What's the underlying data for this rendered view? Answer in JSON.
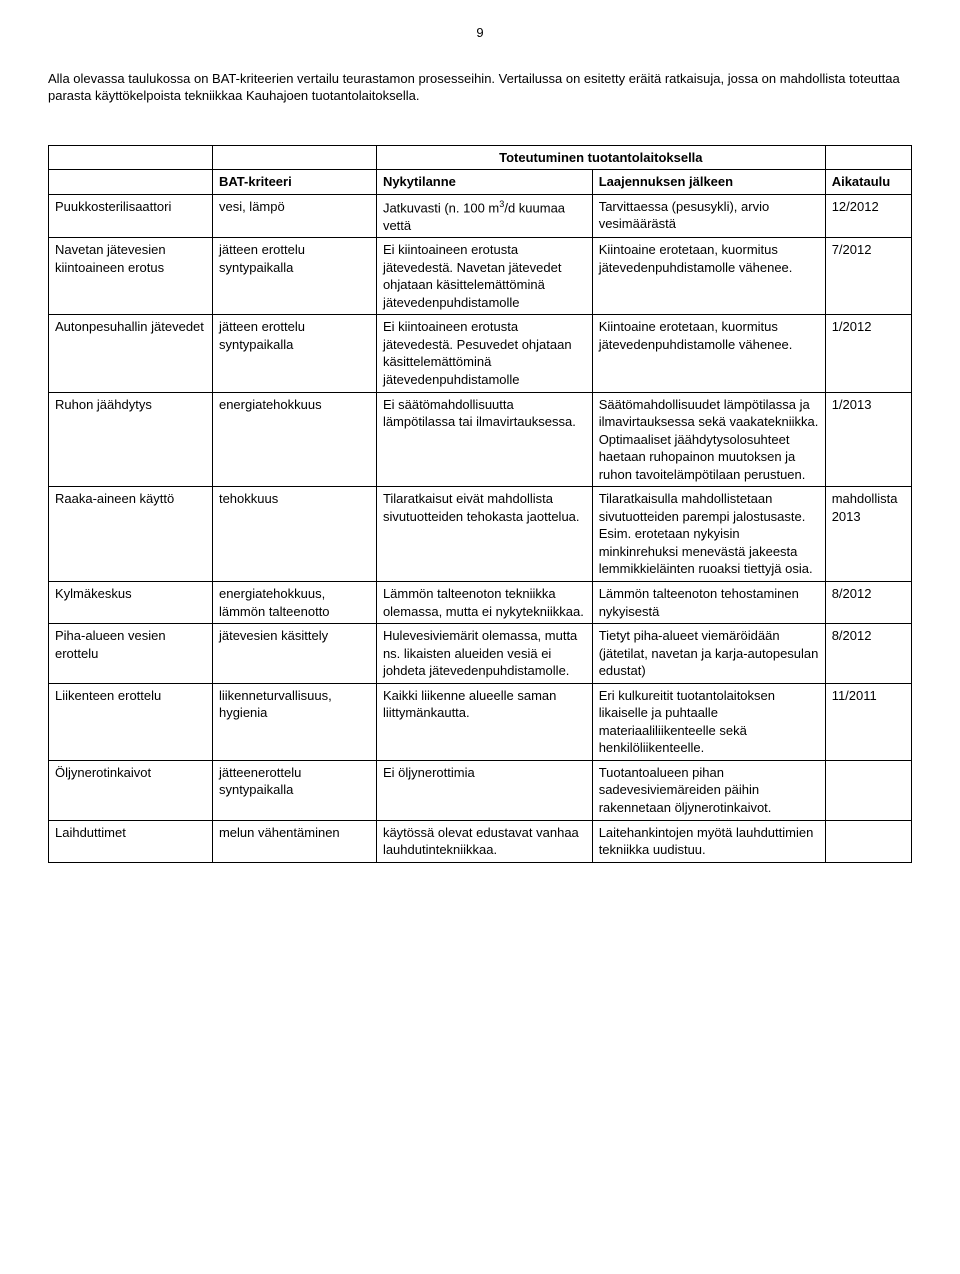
{
  "page_number": "9",
  "intro_text": "Alla olevassa taulukossa on BAT-kriteerien vertailu teurastamon prosesseihin. Vertailussa on esitetty eräitä ratkaisuja, jossa on mahdollista toteuttaa parasta käyttökelpoista tekniikkaa Kauhajoen tuotantolaitoksella.",
  "table": {
    "header_merged": "Toteutuminen tuotantolaitoksella",
    "col_labels": {
      "feature": "",
      "criteria": "BAT-kriteeri",
      "current": "Nykytilanne",
      "after": "Laajennuksen jälkeen",
      "schedule": "Aikataulu"
    },
    "rows": [
      {
        "feature": "Puukkosterilisaattori",
        "criteria": "vesi, lämpö",
        "current": "Jatkuvasti (n. 100 m³/d kuumaa vettä",
        "after": "Tarvittaessa (pesusykli), arvio vesimäärästä",
        "schedule": "12/2012"
      },
      {
        "feature": "Navetan jätevesien kiintoaineen erotus",
        "criteria": "jätteen erottelu syntypaikalla",
        "current": "Ei kiintoaineen erotusta jätevedestä. Navetan jätevedet ohjataan käsittelemättöminä jätevedenpuhdistamolle",
        "after": "Kiintoaine erotetaan, kuormitus jätevedenpuhdistamolle vähenee.",
        "schedule": "7/2012"
      },
      {
        "feature": "Autonpesuhallin jätevedet",
        "criteria": "jätteen erottelu syntypaikalla",
        "current": "Ei kiintoaineen erotusta jätevedestä. Pesuvedet ohjataan käsittelemättöminä jätevedenpuhdistamolle",
        "after": "Kiintoaine erotetaan, kuormitus jätevedenpuhdistamolle vähenee.",
        "schedule": "1/2012"
      },
      {
        "feature": "Ruhon jäähdytys",
        "criteria": "energiatehokkuus",
        "current": "Ei säätömahdollisuutta lämpötilassa tai ilmavirtauksessa.",
        "after": "Säätömahdollisuudet lämpötilassa ja ilmavirtauksessa sekä vaakatekniikka. Optimaaliset jäähdytysolosuhteet haetaan ruhopainon muutoksen ja ruhon tavoitelämpötilaan perustuen.",
        "schedule": "1/2013"
      },
      {
        "feature": "Raaka-aineen käyttö",
        "criteria": "tehokkuus",
        "current": "Tilaratkaisut eivät mahdollista sivutuotteiden tehokasta jaottelua.",
        "after": "Tilaratkaisulla mahdollistetaan sivutuotteiden parempi jalostusaste. Esim. erotetaan nykyisin minkinrehuksi menevästä jakeesta lemmikkieläinten ruoaksi tiettyjä osia.",
        "schedule": "mahdollista 2013"
      },
      {
        "feature": "Kylmäkeskus",
        "criteria": "energiatehokkuus, lämmön talteenotto",
        "current": "Lämmön talteenoton tekniikka olemassa, mutta ei nykytekniikkaa.",
        "after": "Lämmön talteenoton tehostaminen nykyisestä",
        "schedule": "8/2012"
      },
      {
        "feature": "Piha-alueen vesien erottelu",
        "criteria": "jätevesien käsittely",
        "current": "Hulevesiviemärit olemassa, mutta ns. likaisten alueiden vesiä ei johdeta jätevedenpuhdistamolle.",
        "after": "Tietyt piha-alueet viemäröidään (jätetilat, navetan ja karja-autopesulan edustat)",
        "schedule": "8/2012"
      },
      {
        "feature": "Liikenteen erottelu",
        "criteria": "liikenneturvallisuus, hygienia",
        "current": "Kaikki liikenne alueelle saman liittymänkautta.",
        "after": "Eri kulkureitit tuotantolaitoksen likaiselle ja puhtaalle materiaaliliikenteelle sekä henkilöliikenteelle.",
        "schedule": "11/2011"
      },
      {
        "feature": "Öljynerotinkaivot",
        "criteria": "jätteenerottelu syntypaikalla",
        "current": "Ei öljynerottimia",
        "after": "Tuotantoalueen pihan sadevesiviemäreiden päihin rakennetaan öljynerotinkaivot.",
        "schedule": ""
      },
      {
        "feature": "Laihduttimet",
        "criteria": "melun vähentäminen",
        "current": "käytössä olevat edustavat vanhaa lauhdutintekniikkaa.",
        "after": "Laitehankintojen myötä lauhduttimien tekniikka uudistuu.",
        "schedule": ""
      }
    ]
  },
  "style": {
    "background_color": "#ffffff",
    "text_color": "#000000",
    "border_color": "#000000",
    "font_family": "Arial",
    "body_font_size": 13
  }
}
